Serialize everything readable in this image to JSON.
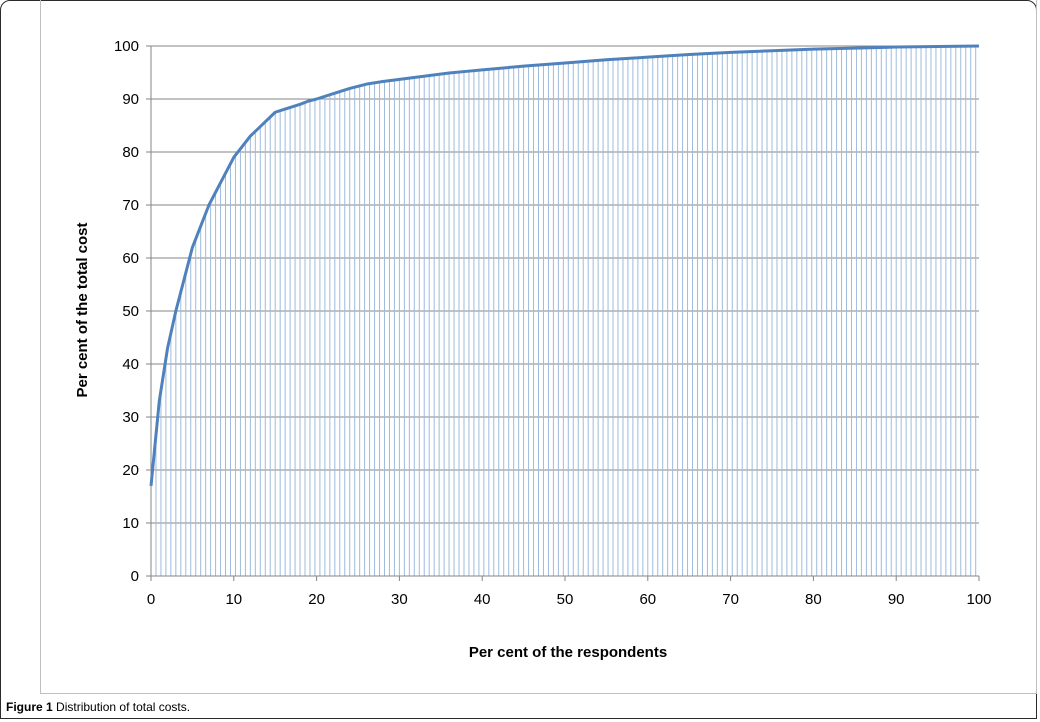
{
  "caption": {
    "label": "Figure 1",
    "text": "Distribution of total costs."
  },
  "chart_data": {
    "type": "line",
    "title": "",
    "xlabel": "Per cent of the respondents",
    "ylabel": "Per cent of the total cost",
    "xlim": [
      0,
      100
    ],
    "ylim": [
      0,
      100
    ],
    "xticks": [
      0,
      10,
      20,
      30,
      40,
      50,
      60,
      70,
      80,
      90,
      100
    ],
    "yticks": [
      0,
      10,
      20,
      30,
      40,
      50,
      60,
      70,
      80,
      90,
      100
    ],
    "grid": {
      "horizontal": true,
      "vertical": false
    },
    "drop_lines": true,
    "legend": "none",
    "line_color": "#4f81bd",
    "drop_line_color": "#9fbbdc",
    "series": [
      {
        "x": [
          0,
          1,
          2,
          3,
          4,
          5,
          6,
          7,
          8,
          9,
          10,
          11,
          12,
          13,
          14,
          15,
          16,
          17,
          18,
          19,
          20,
          22,
          24,
          26,
          28,
          30,
          32,
          34,
          36,
          38,
          40,
          45,
          50,
          55,
          60,
          65,
          70,
          75,
          80,
          85,
          90,
          95,
          100
        ],
        "y": [
          17,
          33,
          43,
          50,
          56,
          62,
          66,
          70,
          73,
          76,
          79,
          81,
          83,
          84.5,
          86,
          87.5,
          88,
          88.5,
          89,
          89.6,
          90,
          91,
          92,
          92.8,
          93.3,
          93.7,
          94.1,
          94.5,
          94.9,
          95.2,
          95.5,
          96.2,
          96.8,
          97.4,
          97.9,
          98.4,
          98.8,
          99.1,
          99.4,
          99.6,
          99.8,
          99.9,
          100
        ]
      }
    ]
  }
}
